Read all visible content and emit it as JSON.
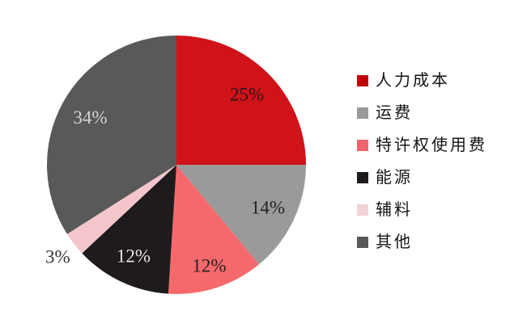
{
  "background_color": "#ffffff",
  "chart_data": {
    "type": "pie",
    "title": "",
    "start_angle_deg": 0,
    "direction": "clockwise",
    "legend_position": "right",
    "slices": [
      {
        "label": "人力成本",
        "value": 25,
        "pct_label": "25%",
        "color": "#d01219",
        "legend_color": "#c00508",
        "label_color": "#301518",
        "label_r": 0.77
      },
      {
        "label": "运费",
        "value": 14,
        "pct_label": "14%",
        "color": "#9a9a9a",
        "legend_color": "#9a9a9a",
        "label_color": "#242124",
        "label_r": 0.78
      },
      {
        "label": "特许权使用费",
        "value": 12,
        "pct_label": "12%",
        "color": "#f5696c",
        "legend_color": "#f0656d",
        "label_color": "#2b1f22",
        "label_r": 0.82
      },
      {
        "label": "能源",
        "value": 12,
        "pct_label": "12%",
        "color": "#1f1b1c",
        "legend_color": "#1f1b1c",
        "label_color": "#e4e2e3",
        "label_r": 0.78
      },
      {
        "label": "辅料",
        "value": 3,
        "pct_label": "3%",
        "color": "#f4c6cc",
        "legend_color": "#f2d2d6",
        "label_color": "#363336",
        "label_r": 1.16
      },
      {
        "label": "其他",
        "value": 34,
        "pct_label": "34%",
        "color": "#595959",
        "legend_color": "#595959",
        "label_color": "#d3d1d3",
        "label_r": 0.76
      }
    ]
  }
}
